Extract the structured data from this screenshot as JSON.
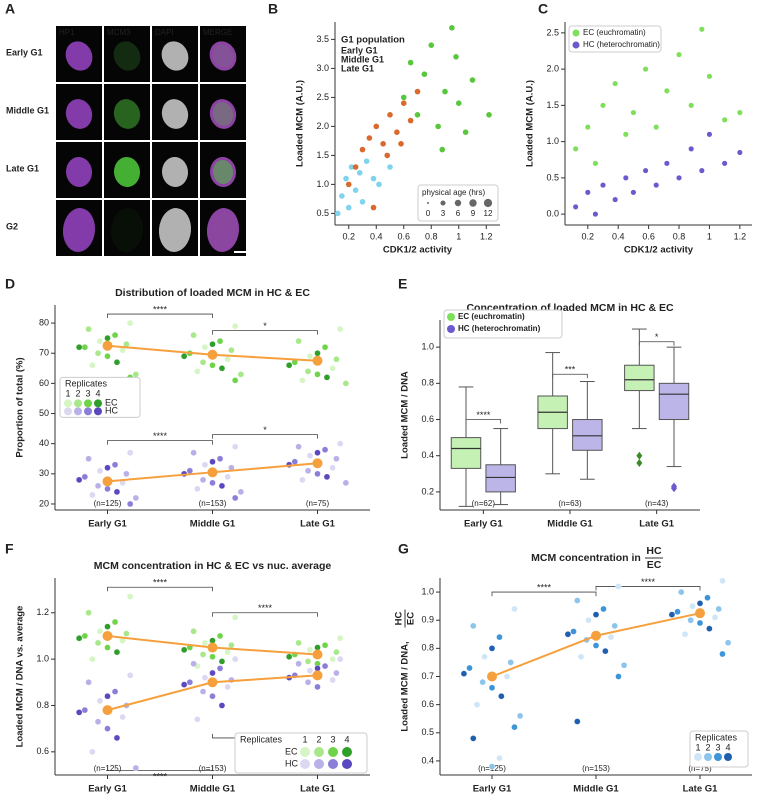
{
  "panel_a": {
    "label": "A",
    "columns": [
      "HP1",
      "MCM3",
      "DAPI",
      "MERGE"
    ],
    "rows": [
      "Early G1",
      "Middle G1",
      "Late G1",
      "G2"
    ]
  },
  "chart_data": [
    {
      "type": "scatter",
      "label": "B",
      "xlabel": "CDK1/2  activity",
      "ylabel": "Loaded MCM (A.U.)",
      "xlim": [
        0.1,
        1.3
      ],
      "ylim": [
        0.3,
        3.8
      ],
      "xticks": [
        0.2,
        0.4,
        0.6,
        0.8,
        1.0,
        1.2
      ],
      "yticks": [
        0.5,
        {
          "value": 1,
          "label": "1.0"
        },
        1.5,
        {
          "value": 2,
          "label": "2.0"
        },
        2.5,
        {
          "value": 3,
          "label": "3.0"
        },
        3.5
      ],
      "legend_title": "G1 population",
      "size_legend": {
        "title": "physical age (hrs)",
        "values": [
          0,
          3,
          6,
          9,
          12
        ]
      },
      "series": [
        {
          "name": "Early G1",
          "color": "#7fd3ec",
          "x": [
            0.12,
            0.15,
            0.18,
            0.2,
            0.22,
            0.25,
            0.28,
            0.3,
            0.33,
            0.38,
            0.42,
            0.5
          ],
          "y": [
            0.5,
            0.8,
            1.1,
            0.6,
            1.3,
            0.9,
            1.2,
            0.7,
            1.4,
            1.1,
            1.0,
            1.3
          ]
        },
        {
          "name": "Middle G1",
          "color": "#d9692c",
          "x": [
            0.2,
            0.25,
            0.3,
            0.35,
            0.4,
            0.45,
            0.5,
            0.55,
            0.6,
            0.65,
            0.7,
            0.38,
            0.48,
            0.58
          ],
          "y": [
            1.0,
            1.3,
            1.6,
            1.8,
            2.0,
            1.7,
            2.2,
            1.9,
            2.4,
            2.1,
            2.6,
            0.6,
            1.5,
            1.7
          ]
        },
        {
          "name": "Late G1",
          "color": "#59c73d",
          "x": [
            0.6,
            0.65,
            0.7,
            0.75,
            0.8,
            0.85,
            0.9,
            0.95,
            1.0,
            1.05,
            1.1,
            1.22,
            0.88,
            0.98
          ],
          "y": [
            2.5,
            3.1,
            2.2,
            2.9,
            3.4,
            2.0,
            2.6,
            3.7,
            2.4,
            1.9,
            2.8,
            2.2,
            1.6,
            3.2
          ]
        }
      ]
    },
    {
      "type": "scatter",
      "label": "C",
      "xlabel": "CDK1/2  activity",
      "ylabel": "Loaded MCM (A.U.)",
      "xlim": [
        0.05,
        1.28
      ],
      "ylim": [
        -0.15,
        2.65
      ],
      "xticks": [
        0.2,
        0.4,
        0.6,
        0.8,
        1.0,
        1.2
      ],
      "yticks": [
        {
          "value": 0,
          "label": "0.0"
        },
        0.5,
        {
          "value": 1,
          "label": "1.0"
        },
        1.5,
        {
          "value": 2,
          "label": "2.0"
        },
        2.5
      ],
      "series": [
        {
          "name": "EC (euchromatin)",
          "color": "#7ee05a",
          "x": [
            0.12,
            0.2,
            0.25,
            0.3,
            0.38,
            0.45,
            0.5,
            0.58,
            0.65,
            0.72,
            0.8,
            0.88,
            0.95,
            1.0,
            1.1,
            1.2
          ],
          "y": [
            0.9,
            1.2,
            0.7,
            1.5,
            1.8,
            1.1,
            1.4,
            2.0,
            1.2,
            1.7,
            2.2,
            1.5,
            2.55,
            1.9,
            1.3,
            1.4
          ]
        },
        {
          "name": "HC (heterochromatin)",
          "color": "#6a5acd",
          "x": [
            0.12,
            0.2,
            0.25,
            0.3,
            0.38,
            0.45,
            0.5,
            0.58,
            0.65,
            0.72,
            0.8,
            0.88,
            0.95,
            1.0,
            1.1,
            1.2
          ],
          "y": [
            0.1,
            0.3,
            0.0,
            0.4,
            0.2,
            0.5,
            0.3,
            0.6,
            0.4,
            0.7,
            0.5,
            0.9,
            0.6,
            1.1,
            0.7,
            0.85
          ]
        }
      ]
    },
    {
      "type": "swarm",
      "label": "D",
      "title": "Distribution of  loaded MCM in HC & EC",
      "ylabel": "Proportion of total (%)",
      "categories": [
        "Early G1",
        "Middle G1",
        "Late G1"
      ],
      "ylim": [
        18,
        86
      ],
      "yticks": [
        20,
        30,
        40,
        50,
        60,
        70,
        80
      ],
      "n_labels": [
        "(n=125)",
        "(n=153)",
        "(n=75)"
      ],
      "mean_color": "#f5a03c",
      "significance": [
        "****",
        "*",
        "****",
        "*"
      ],
      "legend": {
        "title": "Replicates",
        "levels": [
          "1",
          "2",
          "3",
          "4"
        ]
      },
      "series": [
        {
          "name": "EC",
          "colors": [
            "#d5f5c4",
            "#a8e88a",
            "#6fd44a",
            "#2f9e2a"
          ],
          "means": [
            72.5,
            69.5,
            67.5
          ],
          "values": [
            [
              80,
              78,
              76,
              75,
              74,
              73,
              72,
              72,
              71,
              70,
              69,
              67,
              66,
              63,
              62
            ],
            [
              79,
              76,
              74,
              73,
              72,
              71,
              70,
              69,
              68,
              67,
              66,
              65,
              64,
              63,
              61
            ],
            [
              78,
              74,
              72,
              70,
              69,
              68,
              67,
              66,
              65,
              64,
              63,
              62,
              61,
              60
            ]
          ]
        },
        {
          "name": "HC",
          "colors": [
            "#dcd8f2",
            "#b8b0e6",
            "#8a7ed8",
            "#5a48c0"
          ],
          "means": [
            27.5,
            30.5,
            33.5
          ],
          "values": [
            [
              37,
              35,
              33,
              32,
              31,
              30,
              29,
              28,
              27,
              26,
              25,
              24,
              23,
              22,
              20
            ],
            [
              39,
              37,
              35,
              34,
              33,
              32,
              31,
              30,
              29,
              28,
              27,
              26,
              25,
              24,
              22
            ],
            [
              40,
              39,
              38,
              37,
              36,
              35,
              34,
              33,
              32,
              31,
              30,
              29,
              28,
              27
            ]
          ]
        }
      ]
    },
    {
      "type": "box",
      "label": "E",
      "title": "Concentration of  loaded MCM in HC & EC",
      "ylabel": "Loaded MCM / DNA",
      "categories": [
        "Early G1",
        "Middle G1",
        "Late G1"
      ],
      "ylim": [
        0.1,
        1.15
      ],
      "yticks": [
        0.2,
        0.4,
        0.6,
        0.8,
        {
          "value": 1,
          "label": "1.0"
        }
      ],
      "n_labels": [
        "(n=62)",
        "(n=63)",
        "(n=43)"
      ],
      "significance": [
        "****",
        "***",
        "*"
      ],
      "series": [
        {
          "name": "EC (euchromatin)",
          "color": "#7ee05a",
          "boxes": [
            {
              "min": 0.12,
              "q1": 0.33,
              "median": 0.44,
              "q3": 0.5,
              "max": 0.78,
              "outliers": []
            },
            {
              "min": 0.3,
              "q1": 0.55,
              "median": 0.64,
              "q3": 0.73,
              "max": 0.97,
              "outliers": []
            },
            {
              "min": 0.55,
              "q1": 0.76,
              "median": 0.82,
              "q3": 0.9,
              "max": 1.1,
              "outliers": [
                0.4,
                0.36
              ]
            }
          ]
        },
        {
          "name": "HC (heterochromatin)",
          "color": "#6a5acd",
          "boxes": [
            {
              "min": 0.13,
              "q1": 0.2,
              "median": 0.28,
              "q3": 0.35,
              "max": 0.55,
              "outliers": []
            },
            {
              "min": 0.27,
              "q1": 0.43,
              "median": 0.51,
              "q3": 0.6,
              "max": 0.81,
              "outliers": []
            },
            {
              "min": 0.34,
              "q1": 0.6,
              "median": 0.74,
              "q3": 0.8,
              "max": 1.0,
              "outliers": [
                0.23,
                0.22
              ]
            }
          ]
        }
      ]
    },
    {
      "type": "swarm",
      "label": "F",
      "title": "MCM concentration in HC & EC vs nuc. average",
      "ylabel": "Loaded MCM / DNA vs. average",
      "categories": [
        "Early G1",
        "Middle G1",
        "Late G1"
      ],
      "ylim": [
        0.5,
        1.35
      ],
      "yticks": [
        0.6,
        0.8,
        {
          "value": 1,
          "label": "1.0"
        },
        1.2
      ],
      "n_labels": [
        "(n=125)",
        "(n=153)",
        "(n=75)"
      ],
      "mean_color": "#f5a03c",
      "significance": [
        "****",
        "****",
        "****",
        "****"
      ],
      "legend": {
        "title": "Replicates",
        "levels": [
          "1",
          "2",
          "3",
          "4"
        ]
      },
      "series": [
        {
          "name": "EC",
          "colors": [
            "#d5f5c4",
            "#a8e88a",
            "#6fd44a",
            "#2f9e2a"
          ],
          "means": [
            1.1,
            1.05,
            1.02
          ],
          "values": [
            [
              1.27,
              1.2,
              1.16,
              1.14,
              1.12,
              1.11,
              1.1,
              1.09,
              1.08,
              1.07,
              1.05,
              1.03,
              1.0
            ],
            [
              1.18,
              1.12,
              1.1,
              1.08,
              1.07,
              1.06,
              1.05,
              1.04,
              1.03,
              1.02,
              1.01,
              0.99,
              0.97
            ],
            [
              1.09,
              1.07,
              1.06,
              1.05,
              1.04,
              1.03,
              1.02,
              1.01,
              1.0,
              0.99,
              0.98
            ]
          ]
        },
        {
          "name": "HC",
          "colors": [
            "#dcd8f2",
            "#b8b0e6",
            "#8a7ed8",
            "#5a48c0"
          ],
          "means": [
            0.78,
            0.9,
            0.93
          ],
          "values": [
            [
              0.93,
              0.9,
              0.86,
              0.84,
              0.82,
              0.8,
              0.78,
              0.77,
              0.75,
              0.73,
              0.7,
              0.66,
              0.6,
              0.53
            ],
            [
              1.0,
              0.98,
              0.96,
              0.94,
              0.92,
              0.91,
              0.9,
              0.89,
              0.88,
              0.86,
              0.84,
              0.8,
              0.74,
              0.66
            ],
            [
              1.0,
              0.98,
              0.97,
              0.96,
              0.95,
              0.94,
              0.93,
              0.92,
              0.91,
              0.9,
              0.88
            ]
          ]
        }
      ]
    },
    {
      "type": "swarm",
      "label": "G",
      "title": "MCM concentration in",
      "title_fraction": [
        "HC",
        "EC"
      ],
      "ylabel": "Loaded MCM / DNA,",
      "ylabel_fraction": [
        "HC",
        "EC"
      ],
      "categories": [
        "Early G1",
        "Middle G1",
        "Late G1"
      ],
      "ylim": [
        0.35,
        1.05
      ],
      "yticks": [
        0.4,
        0.5,
        0.6,
        0.7,
        0.8,
        0.9,
        {
          "value": 1,
          "label": "1.0"
        }
      ],
      "n_labels": [
        "(n=125)",
        "(n=153)",
        "(n=75)"
      ],
      "mean_color": "#f5a03c",
      "significance": [
        "****",
        "****"
      ],
      "legend": {
        "title": "Replicates",
        "levels": [
          "1",
          "2",
          "3",
          "4"
        ]
      },
      "series": [
        {
          "colors": [
            "#cfe6f7",
            "#8cc4ec",
            "#3d95d8",
            "#1f5fb0"
          ],
          "means": [
            0.7,
            0.845,
            0.925
          ],
          "values": [
            [
              0.94,
              0.88,
              0.84,
              0.8,
              0.77,
              0.75,
              0.73,
              0.71,
              0.7,
              0.68,
              0.66,
              0.63,
              0.6,
              0.56,
              0.52,
              0.48,
              0.41,
              0.38
            ],
            [
              1.02,
              0.97,
              0.94,
              0.92,
              0.9,
              0.88,
              0.86,
              0.85,
              0.84,
              0.83,
              0.81,
              0.79,
              0.77,
              0.74,
              0.7,
              0.54
            ],
            [
              1.04,
              1.0,
              0.98,
              0.96,
              0.95,
              0.94,
              0.93,
              0.92,
              0.91,
              0.9,
              0.89,
              0.87,
              0.85,
              0.82,
              0.78
            ]
          ]
        }
      ]
    }
  ]
}
